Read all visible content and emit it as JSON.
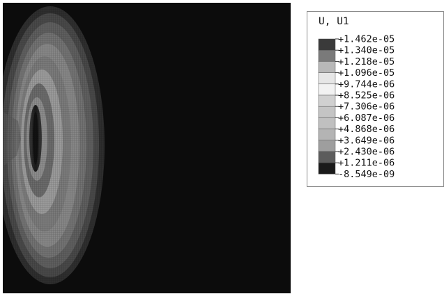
{
  "legend": {
    "variable": "U, U1",
    "labels": [
      "+1.462e-05",
      "+1.340e-05",
      "+1.218e-05",
      "+1.096e-05",
      "+9.744e-06",
      "+8.525e-06",
      "+7.306e-06",
      "+6.087e-06",
      "+4.868e-06",
      "+3.649e-06",
      "+2.430e-06",
      "+1.211e-06",
      "-8.549e-09"
    ],
    "band_colors": [
      "#3a3a3a",
      "#7a7a7a",
      "#b8b8b8",
      "#e6e6e6",
      "#f2f2f2",
      "#d0d0d0",
      "#c4c4c4",
      "#c0c0c0",
      "#b4b4b4",
      "#9e9e9e",
      "#5c5c5c",
      "#1a1a1a"
    ]
  },
  "contour_plot": {
    "background_color": "#0c0c0c"
  }
}
